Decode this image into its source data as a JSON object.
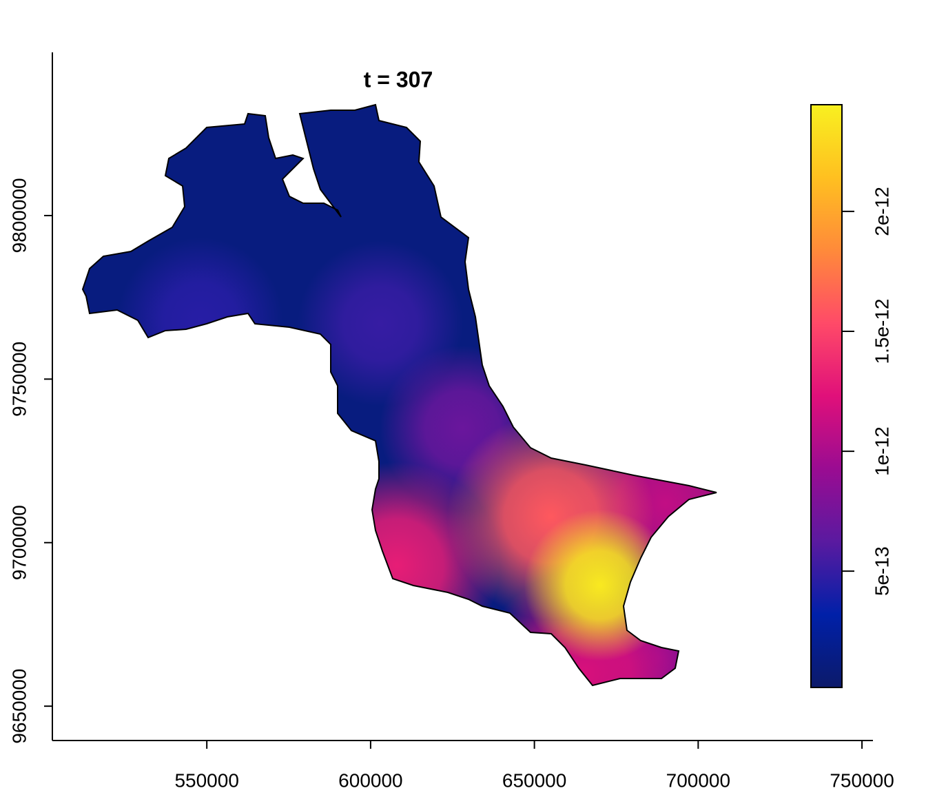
{
  "chart_data": {
    "type": "raster",
    "title": "t = 307",
    "xlim": [
      502850,
      753350
    ],
    "xticks": [
      550000,
      600000,
      650000,
      700000,
      750000
    ],
    "ylim": [
      9639500,
      9849900
    ],
    "yticks": [
      9650000,
      9700000,
      9750000,
      9800000
    ],
    "colorbar": {
      "lim": [
        1.5e-14,
        2.445e-12
      ],
      "ticks": [
        5e-13,
        1e-12,
        1.5e-12,
        2e-12
      ],
      "colors": [
        "#0c1a6a",
        "#0020a8",
        "#5a1aa0",
        "#9a0c92",
        "#e0107a",
        "#ff4a68",
        "#ff8a3a",
        "#ffc020",
        "#f8f020"
      ]
    },
    "field": {
      "background": 1.2e-13,
      "x": [
        548000,
        603000,
        628000,
        688000,
        690000,
        608000,
        665000,
        655000,
        670000
      ],
      "y": [
        9768000,
        9767000,
        9735000,
        9665000,
        9712000,
        9693000,
        9660000,
        9708000,
        9687000
      ],
      "values": [
        4.5e-13,
        5e-13,
        7e-13,
        9e-13,
        1.1e-12,
        1.3e-12,
        1.2e-12,
        1.6e-12,
        2.4e-12
      ]
    }
  }
}
